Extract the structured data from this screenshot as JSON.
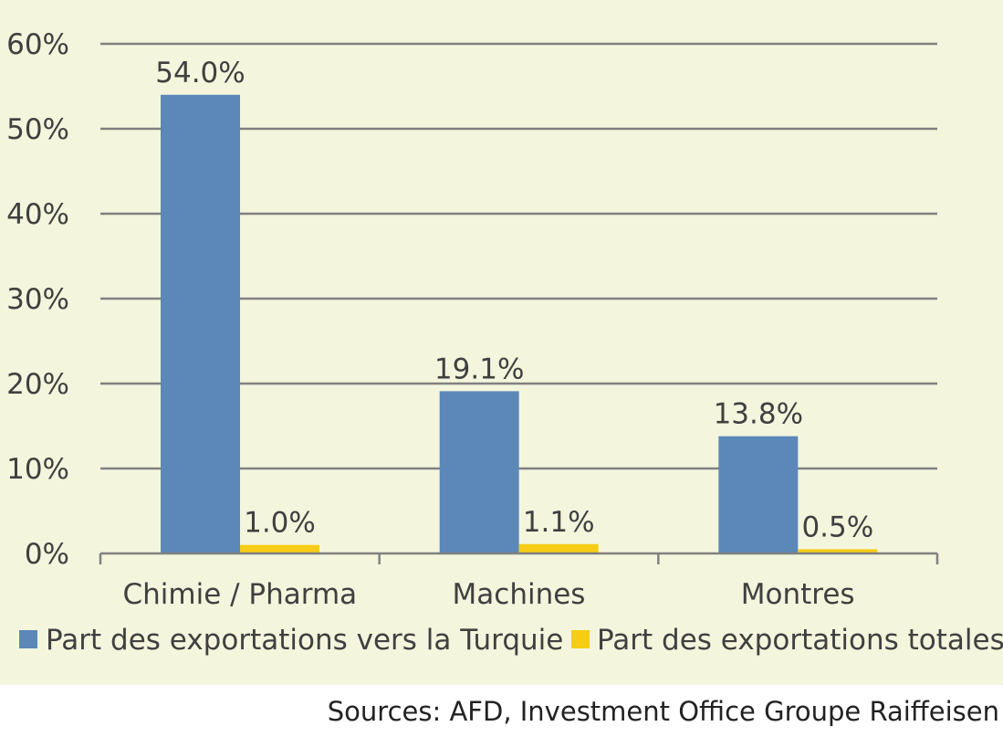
{
  "chart_data": {
    "type": "bar",
    "categories": [
      "Chimie / Pharma",
      "Machines",
      "Montres"
    ],
    "series": [
      {
        "name": "Part des exportations vers la Turquie",
        "color": "#5b88b8",
        "values": [
          54.0,
          19.1,
          13.8
        ],
        "labels": [
          "54.0%",
          "19.1%",
          "13.8%"
        ]
      },
      {
        "name": "Part des exportations totales",
        "color": "#f6cd14",
        "values": [
          1.0,
          1.1,
          0.5
        ],
        "labels": [
          "1.0%",
          "1.1%",
          "0.5%"
        ]
      }
    ],
    "yticks": [
      0,
      10,
      20,
      30,
      40,
      50,
      60
    ],
    "ytick_labels": [
      "0%",
      "10%",
      "20%",
      "30%",
      "40%",
      "50%",
      "60%"
    ],
    "ylim": [
      0,
      60
    ],
    "grid": true,
    "legend": "bottom",
    "title": "",
    "xlabel": "",
    "ylabel": ""
  },
  "source": "Sources: AFD, Investment Office Groupe Raiffeisen"
}
